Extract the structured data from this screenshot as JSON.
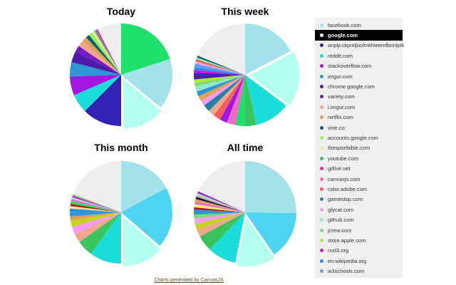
{
  "legend": [
    {
      "label": "facebook.com",
      "color": "#a3e2e8"
    },
    {
      "label": "google.com",
      "color": "#b3fff0",
      "selected": true
    },
    {
      "label": "anpijcckpmljoolmkhieemfbnnipik",
      "color": "#2f22b5"
    },
    {
      "label": "reddit.com",
      "color": "#1adcd8"
    },
    {
      "label": "stackoverflow.com",
      "color": "#a416e0"
    },
    {
      "label": "imgur.com",
      "color": "#2b97d4"
    },
    {
      "label": "chrome.google.com",
      "color": "#4b1aa6"
    },
    {
      "label": "variety.com",
      "color": "#7519c0"
    },
    {
      "label": "i.imgur.com",
      "color": "#f1a78b"
    },
    {
      "label": "netflix.com",
      "color": "#dea053"
    },
    {
      "label": "vine.co",
      "color": "#0f5f73"
    },
    {
      "label": "accounts.google.com",
      "color": "#8ef55a"
    },
    {
      "label": "thesportbible.com",
      "color": "#f8e3b0"
    },
    {
      "label": "youtube.com",
      "color": "#3cc45c"
    },
    {
      "label": "gitlive.net",
      "color": "#f21cbf"
    },
    {
      "label": "canvasjs.com",
      "color": "#ee6ac5"
    },
    {
      "label": "color.adobe.com",
      "color": "#f55e5e"
    },
    {
      "label": "gamestop.com",
      "color": "#2381a8"
    },
    {
      "label": "gfycat.com",
      "color": "#f49bf5"
    },
    {
      "label": "github.com",
      "color": "#8fe8c8"
    },
    {
      "label": "jcrew.com",
      "color": "#86d672"
    },
    {
      "label": "store.apple.com",
      "color": "#a4f02a"
    },
    {
      "label": "nvd3.org",
      "color": "#d010e0"
    },
    {
      "label": "en.wikipedia.org",
      "color": "#2a8cf0"
    },
    {
      "label": "w3schools.com",
      "color": "#5e9ef0"
    }
  ],
  "footer": "Charts generated by CanvasJS",
  "chart_data": [
    {
      "type": "pie",
      "title": "Today",
      "unit": "percent",
      "slices": [
        {
          "color": "#1ee06a",
          "value": 20
        },
        {
          "color": "#a3e2e8",
          "value": 16
        },
        {
          "color": "#b3fff0",
          "value": 14,
          "exploded": true
        },
        {
          "color": "#2f22b5",
          "value": 12.5
        },
        {
          "color": "#1adcd8",
          "value": 6
        },
        {
          "color": "#a416e0",
          "value": 6
        },
        {
          "color": "#2b97d4",
          "value": 4.5
        },
        {
          "color": "#4b1aa6",
          "value": 3.5
        },
        {
          "color": "#7519c0",
          "value": 2
        },
        {
          "color": "#f1a78b",
          "value": 2
        },
        {
          "color": "#dea053",
          "value": 1.5
        },
        {
          "color": "#0f5f73",
          "value": 1.2
        },
        {
          "color": "#8ef55a",
          "value": 1.2
        },
        {
          "color": "#f8e3b0",
          "value": 0.8
        },
        {
          "color": "#3cc45c",
          "value": 0.6
        },
        {
          "color": "#f21cbf",
          "value": 0.6
        },
        {
          "color": "#eeeeee",
          "value": 7.6
        }
      ]
    },
    {
      "type": "pie",
      "title": "This week",
      "unit": "percent",
      "slices": [
        {
          "color": "#a3e2e8",
          "value": 17
        },
        {
          "color": "#b3fff0",
          "value": 17.5,
          "exploded": true
        },
        {
          "color": "#1adcd8",
          "value": 11
        },
        {
          "color": "#3cc45c",
          "value": 3.5
        },
        {
          "color": "#1ee06a",
          "value": 3
        },
        {
          "color": "#ee6ac5",
          "value": 2.7
        },
        {
          "color": "#a416e0",
          "value": 2.3
        },
        {
          "color": "#f55e5e",
          "value": 2.3
        },
        {
          "color": "#f1a78b",
          "value": 2
        },
        {
          "color": "#2381a8",
          "value": 2.2
        },
        {
          "color": "#f49bf5",
          "value": 1.7
        },
        {
          "color": "#dea053",
          "value": 1.6
        },
        {
          "color": "#2b97d4",
          "value": 1.5
        },
        {
          "color": "#8fe8c8",
          "value": 1.6
        },
        {
          "color": "#86d672",
          "value": 1.1
        },
        {
          "color": "#a4f02a",
          "value": 1.1
        },
        {
          "color": "#4b1aa6",
          "value": 1.2
        },
        {
          "color": "#2f22b5",
          "value": 0.8
        },
        {
          "color": "#d010e0",
          "value": 0.9
        },
        {
          "color": "#2a8cf0",
          "value": 0.9
        },
        {
          "color": "#5e9ef0",
          "value": 1
        },
        {
          "color": "#f49bf5",
          "value": 0.8
        },
        {
          "color": "#e85d10",
          "value": 0.6
        },
        {
          "color": "#8fe8c8",
          "value": 0.6
        },
        {
          "color": "#0f5f73",
          "value": 0.6
        },
        {
          "color": "#eeeeee",
          "value": 18.5
        }
      ]
    },
    {
      "type": "pie",
      "title": "This month",
      "unit": "percent",
      "slices": [
        {
          "color": "#a3e2e8",
          "value": 17
        },
        {
          "color": "#4dd4f0",
          "value": 19
        },
        {
          "color": "#b3fff0",
          "value": 13.5,
          "exploded": true
        },
        {
          "color": "#1adcd8",
          "value": 10
        },
        {
          "color": "#3cc45c",
          "value": 5
        },
        {
          "color": "#f1a78b",
          "value": 2.8
        },
        {
          "color": "#f49bf5",
          "value": 2.4
        },
        {
          "color": "#c4d41a",
          "value": 2
        },
        {
          "color": "#dea053",
          "value": 1.3
        },
        {
          "color": "#2b97d4",
          "value": 1.4
        },
        {
          "color": "#2a8cf0",
          "value": 1
        },
        {
          "color": "#f8e880",
          "value": 0.8
        },
        {
          "color": "#b01818",
          "value": 0.7
        },
        {
          "color": "#1ee06a",
          "value": 0.8
        },
        {
          "color": "#ee6ac5",
          "value": 0.7
        },
        {
          "color": "#8fe8c8",
          "value": 0.6
        },
        {
          "color": "#d010e0",
          "value": 0.5
        },
        {
          "color": "#86d672",
          "value": 0.5
        },
        {
          "color": "#eeeeee",
          "value": 19
        }
      ]
    },
    {
      "type": "pie",
      "title": "All time",
      "unit": "percent",
      "slices": [
        {
          "color": "#a3e2e8",
          "value": 25
        },
        {
          "color": "#4dd4f0",
          "value": 15
        },
        {
          "color": "#b3fff0",
          "value": 12.5,
          "exploded": true
        },
        {
          "color": "#1adcd8",
          "value": 9
        },
        {
          "color": "#3cc45c",
          "value": 5
        },
        {
          "color": "#f1a78b",
          "value": 2.3
        },
        {
          "color": "#c4d41a",
          "value": 1.8
        },
        {
          "color": "#f49bf5",
          "value": 1.7
        },
        {
          "color": "#86d672",
          "value": 1.2
        },
        {
          "color": "#2b97d4",
          "value": 1.6
        },
        {
          "color": "#b01818",
          "value": 0.7
        },
        {
          "color": "#f8e880",
          "value": 1
        },
        {
          "color": "#ee6ac5",
          "value": 0.8
        },
        {
          "color": "#dea053",
          "value": 0.8
        },
        {
          "color": "#0a1a70",
          "value": 0.7
        },
        {
          "color": "#f1a78b",
          "value": 0.6
        },
        {
          "color": "#8fe8c8",
          "value": 0.6
        },
        {
          "color": "#a416e0",
          "value": 0.6
        },
        {
          "color": "#eeeeee",
          "value": 18.1
        }
      ]
    }
  ]
}
